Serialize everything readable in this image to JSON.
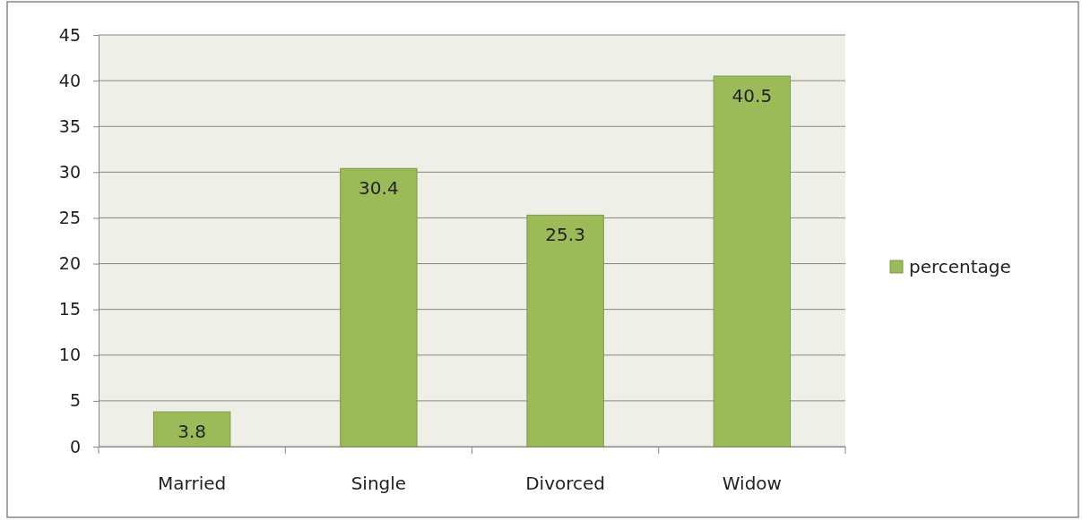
{
  "chart_data": {
    "type": "bar",
    "categories": [
      "Married",
      "Single",
      "Divorced",
      "Widow"
    ],
    "series": [
      {
        "name": "percentage",
        "color": "#9bbb59",
        "values": [
          3.8,
          30.4,
          25.3,
          40.5
        ]
      }
    ],
    "ylim": [
      0,
      45
    ],
    "yticks": [
      0,
      5,
      10,
      15,
      20,
      25,
      30,
      35,
      40,
      45
    ],
    "grid": "y",
    "legend": "right",
    "data_labels": true
  }
}
